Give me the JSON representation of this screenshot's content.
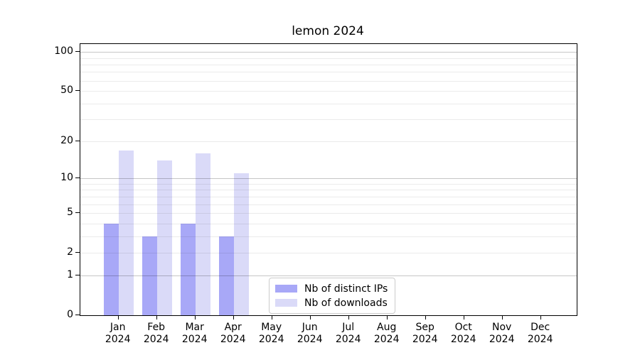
{
  "chart_data": {
    "type": "bar",
    "title": "lemon 2024",
    "x_categories": [
      {
        "month": "Jan",
        "year": "2024"
      },
      {
        "month": "Feb",
        "year": "2024"
      },
      {
        "month": "Mar",
        "year": "2024"
      },
      {
        "month": "Apr",
        "year": "2024"
      },
      {
        "month": "May",
        "year": "2024"
      },
      {
        "month": "Jun",
        "year": "2024"
      },
      {
        "month": "Jul",
        "year": "2024"
      },
      {
        "month": "Aug",
        "year": "2024"
      },
      {
        "month": "Sep",
        "year": "2024"
      },
      {
        "month": "Oct",
        "year": "2024"
      },
      {
        "month": "Nov",
        "year": "2024"
      },
      {
        "month": "Dec",
        "year": "2024"
      }
    ],
    "series": [
      {
        "name": "Nb of distinct IPs",
        "color": "#a8a8f7",
        "values": [
          4,
          3,
          4,
          3,
          null,
          null,
          null,
          null,
          null,
          null,
          null,
          null
        ]
      },
      {
        "name": "Nb of downloads",
        "color": "#dadaf8",
        "values": [
          17,
          14,
          16,
          11,
          null,
          null,
          null,
          null,
          null,
          null,
          null,
          null
        ]
      }
    ],
    "y_axis": {
      "scale": "log1p",
      "min": 0,
      "max": 115,
      "ticks": [
        0,
        1,
        2,
        5,
        10,
        20,
        50,
        100
      ],
      "major_gridlines": [
        1,
        10,
        100
      ],
      "minor_gridlines": [
        2,
        3,
        4,
        5,
        6,
        7,
        8,
        9,
        20,
        30,
        40,
        50,
        60,
        70,
        80,
        90
      ]
    },
    "colors": {
      "grid_major": "#c6c6c6",
      "grid_minor": "#ebebeb",
      "axis": "#000000",
      "background": "#ffffff"
    },
    "legend_position": "lower center"
  }
}
